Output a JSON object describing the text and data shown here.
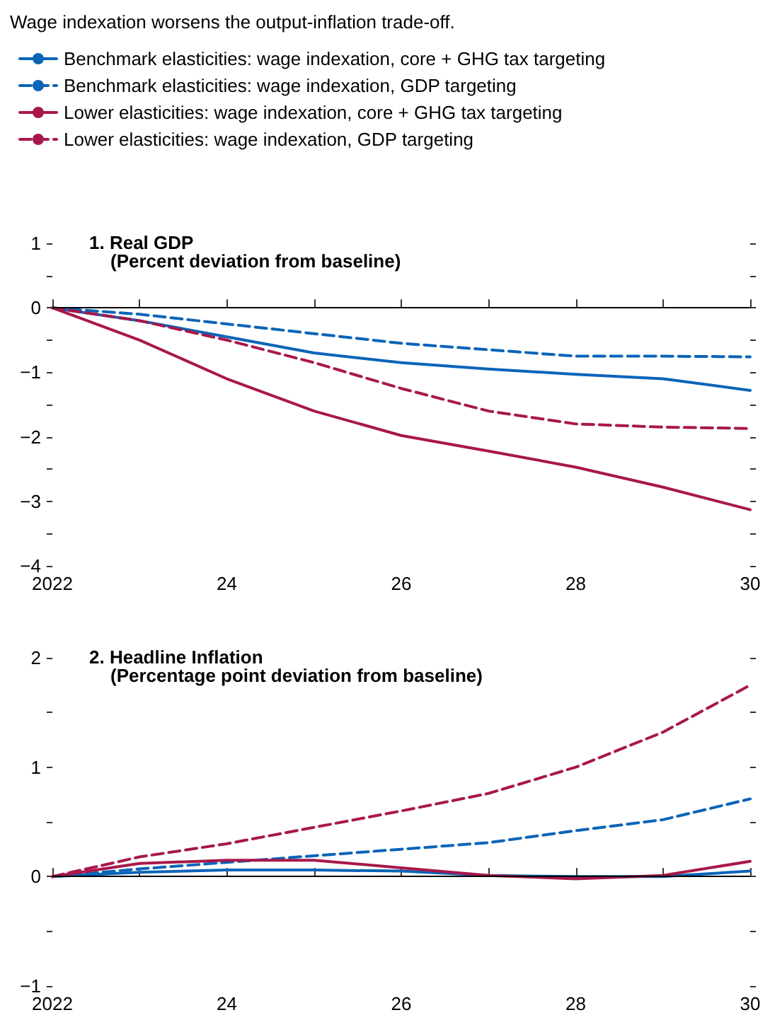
{
  "chart_data": [
    {
      "type": "line",
      "title": "Wage indexation worsens the output-inflation trade-off.",
      "subtitle": "1. Real GDP",
      "annotations": [
        "(Percent deviation from baseline)"
      ],
      "legend": "top left",
      "x": [
        2022,
        2023,
        2024,
        2025,
        2026,
        2027,
        2028,
        2029,
        2030
      ],
      "xlim": [
        2022,
        2030
      ],
      "xticks": [
        2022,
        {
          "value": 2023,
          "label": null
        },
        {
          "value": 2024,
          "label": "24"
        },
        {
          "value": 2025,
          "label": null
        },
        {
          "value": 2026,
          "label": "26"
        },
        {
          "value": 2027,
          "label": null
        },
        {
          "value": 2028,
          "label": "28"
        },
        {
          "value": 2029,
          "label": null
        },
        {
          "value": 2030,
          "label": "30"
        }
      ],
      "ylim": [
        -4,
        1
      ],
      "yticks": [
        -4,
        {
          "value": -3.5,
          "label": null
        },
        -3,
        {
          "value": -2.5,
          "label": null
        },
        -2,
        {
          "value": -1.5,
          "label": null
        },
        -1,
        {
          "value": -0.5,
          "label": null
        },
        0,
        {
          "value": 0.5,
          "label": null
        },
        1
      ],
      "ref_lines": [
        {
          "axis": "y",
          "value": 0,
          "color": "#000000"
        }
      ],
      "series": [
        {
          "name": "Benchmark elasticities: wage indexation, core + GHG tax targeting",
          "color": "#0a64b8",
          "line_style": "solid",
          "values": [
            0,
            -0.2,
            -0.45,
            -0.7,
            -0.85,
            -0.95,
            -1.03,
            -1.1,
            -1.28
          ]
        },
        {
          "name": "Benchmark elasticities: wage indexation, GDP targeting",
          "color": "#0a64b8",
          "line_style": "dashed",
          "values": [
            0,
            -0.1,
            -0.25,
            -0.4,
            -0.55,
            -0.65,
            -0.75,
            -0.75,
            -0.76
          ]
        },
        {
          "name": "Lower elasticities: wage indexation, core + GHG tax targeting",
          "color": "#a8174b",
          "line_style": "solid",
          "values": [
            0,
            -0.5,
            -1.1,
            -1.6,
            -1.98,
            -2.22,
            -2.47,
            -2.78,
            -3.13
          ]
        },
        {
          "name": "Lower elasticities: wage indexation, GDP targeting",
          "color": "#a8174b",
          "line_style": "dashed",
          "values": [
            0,
            -0.2,
            -0.5,
            -0.85,
            -1.25,
            -1.6,
            -1.8,
            -1.85,
            -1.87
          ]
        }
      ]
    },
    {
      "type": "line",
      "subtitle": "2. Headline Inflation",
      "annotations": [
        "(Percentage point deviation from baseline)"
      ],
      "x": [
        2022,
        2023,
        2024,
        2025,
        2026,
        2027,
        2028,
        2029,
        2030
      ],
      "xlim": [
        2022,
        2030
      ],
      "xticks": [
        2022,
        {
          "value": 2023,
          "label": null
        },
        {
          "value": 2024,
          "label": "24"
        },
        {
          "value": 2025,
          "label": null
        },
        {
          "value": 2026,
          "label": "26"
        },
        {
          "value": 2027,
          "label": null
        },
        {
          "value": 2028,
          "label": "28"
        },
        {
          "value": 2029,
          "label": null
        },
        {
          "value": 2030,
          "label": "30"
        }
      ],
      "ylim": [
        -1,
        2
      ],
      "yticks": [
        -1,
        {
          "value": -0.5,
          "label": null
        },
        0,
        {
          "value": 0.5,
          "label": null
        },
        1,
        {
          "value": 1.5,
          "label": null
        },
        2
      ],
      "ref_lines": [
        {
          "axis": "y",
          "value": 0,
          "color": "#000000"
        }
      ],
      "series": [
        {
          "color": "#0a64b8",
          "line_style": "solid",
          "values": [
            0,
            0.04,
            0.06,
            0.06,
            0.05,
            0.01,
            0,
            0,
            0.05
          ]
        },
        {
          "color": "#0a64b8",
          "line_style": "dashed",
          "values": [
            0,
            0.07,
            0.13,
            0.19,
            0.25,
            0.31,
            0.42,
            0.52,
            0.71
          ]
        },
        {
          "color": "#a8174b",
          "line_style": "solid",
          "values": [
            0,
            0.12,
            0.15,
            0.15,
            0.08,
            0.01,
            -0.02,
            0.01,
            0.14
          ]
        },
        {
          "color": "#a8174b",
          "line_style": "dashed",
          "values": [
            0,
            0.18,
            0.3,
            0.45,
            0.6,
            0.76,
            1,
            1.32,
            1.75
          ]
        }
      ]
    }
  ]
}
